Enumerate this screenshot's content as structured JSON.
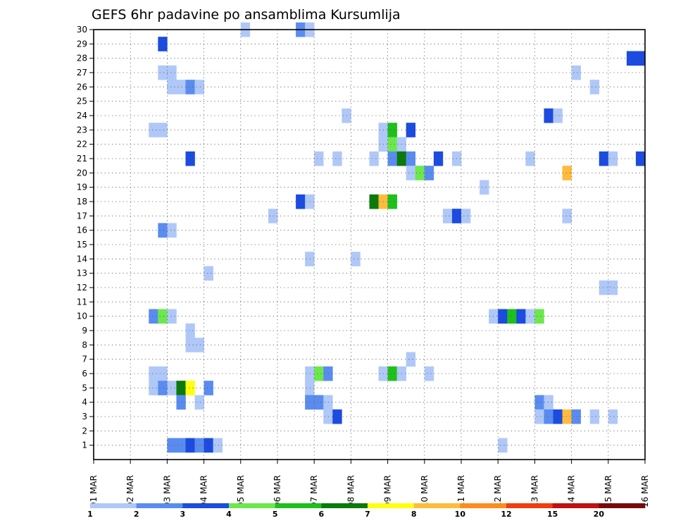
{
  "chart_data": {
    "type": "heatmap",
    "title": "GEFS 6hr padavine po ansamblima Kursumlija",
    "xlabel": "",
    "ylabel": "",
    "x_tick_labels": [
      "01 MAR",
      "02 MAR",
      "03 MAR",
      "04 MAR",
      "05 MAR",
      "06 MAR",
      "07 MAR",
      "08 MAR",
      "09 MAR",
      "10 MAR",
      "11 MAR",
      "12 MAR",
      "13 MAR",
      "14 MAR",
      "15 MAR",
      "16 MAR"
    ],
    "y_tick_labels": [
      "1",
      "2",
      "3",
      "4",
      "5",
      "6",
      "7",
      "8",
      "9",
      "10",
      "11",
      "12",
      "13",
      "14",
      "15",
      "16",
      "17",
      "18",
      "19",
      "20",
      "21",
      "22",
      "23",
      "24",
      "25",
      "26",
      "27",
      "28",
      "29",
      "30"
    ],
    "xlim_steps": [
      0,
      60
    ],
    "steps_per_day": 4,
    "ylim": [
      0,
      30
    ],
    "grid": true,
    "colorbar": {
      "colors": [
        "#b0c8f8",
        "#5a8cf0",
        "#1c4be0",
        "#6ce84c",
        "#1ec01c",
        "#0a7a0a",
        "#ffff10",
        "#ffbc3c",
        "#ff8c1c",
        "#f03c10",
        "#c01010",
        "#7a0a0a"
      ],
      "labels": [
        "1",
        "2",
        "3",
        "4",
        "5",
        "6",
        "7",
        "8",
        "10",
        "12",
        "15",
        "20"
      ]
    },
    "cells": [
      [
        17,
        30,
        1
      ],
      [
        23,
        30,
        2
      ],
      [
        24,
        30,
        1
      ],
      [
        8,
        29,
        3
      ],
      [
        59,
        28,
        3
      ],
      [
        60,
        28,
        3
      ],
      [
        8,
        27,
        1
      ],
      [
        9,
        27,
        1
      ],
      [
        53,
        27,
        1
      ],
      [
        9,
        26,
        1
      ],
      [
        10,
        26,
        1
      ],
      [
        11,
        26,
        2
      ],
      [
        12,
        26,
        1
      ],
      [
        55,
        26,
        1
      ],
      [
        28,
        24,
        1
      ],
      [
        50,
        24,
        3
      ],
      [
        51,
        24,
        1
      ],
      [
        7,
        23,
        1
      ],
      [
        8,
        23,
        1
      ],
      [
        32,
        23,
        1
      ],
      [
        33,
        23,
        5
      ],
      [
        35,
        23,
        3
      ],
      [
        32,
        22,
        1
      ],
      [
        33,
        22,
        4
      ],
      [
        34,
        22,
        1
      ],
      [
        11,
        21,
        3
      ],
      [
        25,
        21,
        1
      ],
      [
        27,
        21,
        1
      ],
      [
        31,
        21,
        1
      ],
      [
        33,
        21,
        2
      ],
      [
        34,
        21,
        6
      ],
      [
        35,
        21,
        2
      ],
      [
        38,
        21,
        3
      ],
      [
        40,
        21,
        1
      ],
      [
        48,
        21,
        1
      ],
      [
        56,
        21,
        3
      ],
      [
        57,
        21,
        1
      ],
      [
        60,
        21,
        3
      ],
      [
        35,
        20,
        1
      ],
      [
        36,
        20,
        4
      ],
      [
        37,
        20,
        2
      ],
      [
        52,
        20,
        8
      ],
      [
        43,
        19,
        1
      ],
      [
        23,
        18,
        3
      ],
      [
        24,
        18,
        1
      ],
      [
        31,
        18,
        6
      ],
      [
        32,
        18,
        8
      ],
      [
        33,
        18,
        5
      ],
      [
        20,
        17,
        1
      ],
      [
        39,
        17,
        1
      ],
      [
        40,
        17,
        3
      ],
      [
        41,
        17,
        1
      ],
      [
        52,
        17,
        1
      ],
      [
        8,
        16,
        2
      ],
      [
        9,
        16,
        1
      ],
      [
        24,
        14,
        1
      ],
      [
        29,
        14,
        1
      ],
      [
        13,
        13,
        1
      ],
      [
        56,
        12,
        1
      ],
      [
        57,
        12,
        1
      ],
      [
        7,
        10,
        2
      ],
      [
        8,
        10,
        4
      ],
      [
        9,
        10,
        1
      ],
      [
        44,
        10,
        1
      ],
      [
        45,
        10,
        3
      ],
      [
        46,
        10,
        5
      ],
      [
        47,
        10,
        3
      ],
      [
        48,
        10,
        1
      ],
      [
        49,
        10,
        4
      ],
      [
        11,
        9,
        1
      ],
      [
        11,
        8,
        1
      ],
      [
        12,
        8,
        1
      ],
      [
        35,
        7,
        1
      ],
      [
        7,
        6,
        1
      ],
      [
        8,
        6,
        1
      ],
      [
        24,
        6,
        1
      ],
      [
        25,
        6,
        4
      ],
      [
        26,
        6,
        2
      ],
      [
        32,
        6,
        1
      ],
      [
        33,
        6,
        5
      ],
      [
        34,
        6,
        1
      ],
      [
        37,
        6,
        1
      ],
      [
        7,
        5,
        1
      ],
      [
        8,
        5,
        2
      ],
      [
        9,
        5,
        1
      ],
      [
        10,
        5,
        6
      ],
      [
        11,
        5,
        7
      ],
      [
        13,
        5,
        2
      ],
      [
        24,
        5,
        1
      ],
      [
        10,
        4,
        2
      ],
      [
        12,
        4,
        1
      ],
      [
        24,
        4,
        2
      ],
      [
        25,
        4,
        2
      ],
      [
        26,
        4,
        1
      ],
      [
        49,
        4,
        2
      ],
      [
        50,
        4,
        1
      ],
      [
        26,
        3,
        1
      ],
      [
        27,
        3,
        3
      ],
      [
        49,
        3,
        1
      ],
      [
        50,
        3,
        2
      ],
      [
        51,
        3,
        3
      ],
      [
        52,
        3,
        8
      ],
      [
        53,
        3,
        2
      ],
      [
        55,
        3,
        1
      ],
      [
        57,
        3,
        1
      ],
      [
        9,
        1,
        2
      ],
      [
        10,
        1,
        2
      ],
      [
        11,
        1,
        3
      ],
      [
        12,
        1,
        2
      ],
      [
        13,
        1,
        3
      ],
      [
        14,
        1,
        1
      ],
      [
        45,
        1,
        1
      ]
    ]
  }
}
